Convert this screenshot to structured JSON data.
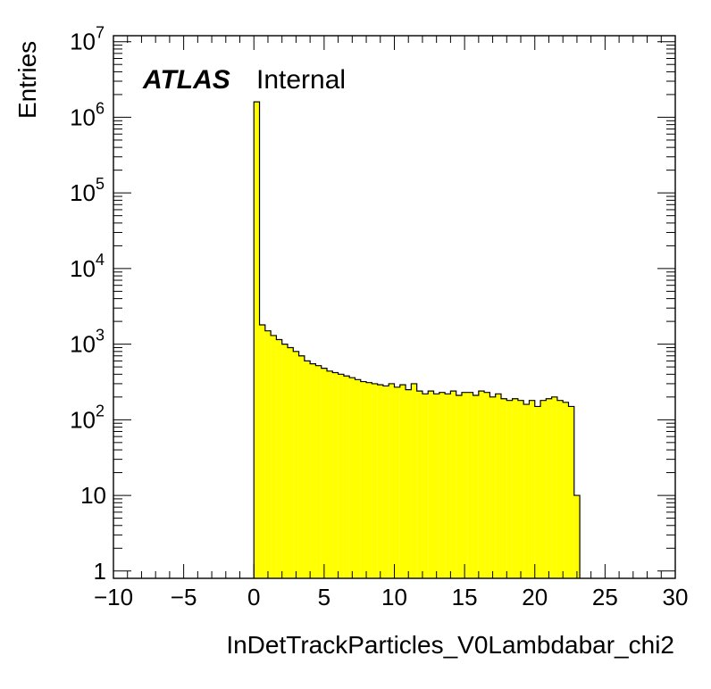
{
  "chart_data": {
    "type": "histogram",
    "xlabel": "InDetTrackParticles_V0Lambdabar_chi2",
    "ylabel": "Entries",
    "xlim": [
      -10,
      30
    ],
    "ylim_log": [
      0.8,
      12000000
    ],
    "log_y": true,
    "fill_color": "#ffff00",
    "line_color": "#000000",
    "label_main": "ATLAS",
    "label_sub": "Internal",
    "x_ticks": [
      {
        "value": -10,
        "label": "−10"
      },
      {
        "value": -5,
        "label": "−5"
      },
      {
        "value": 0,
        "label": "0"
      },
      {
        "value": 5,
        "label": "5"
      },
      {
        "value": 10,
        "label": "10"
      },
      {
        "value": 15,
        "label": "15"
      },
      {
        "value": 20,
        "label": "20"
      },
      {
        "value": 25,
        "label": "25"
      },
      {
        "value": 30,
        "label": "30"
      }
    ],
    "y_ticks": [
      {
        "value": 1,
        "base": "1",
        "exp": ""
      },
      {
        "value": 10,
        "base": "10",
        "exp": ""
      },
      {
        "value": 100,
        "base": "10",
        "exp": "2"
      },
      {
        "value": 1000,
        "base": "10",
        "exp": "3"
      },
      {
        "value": 10000,
        "base": "10",
        "exp": "4"
      },
      {
        "value": 100000,
        "base": "10",
        "exp": "5"
      },
      {
        "value": 1000000,
        "base": "10",
        "exp": "6"
      },
      {
        "value": 10000000,
        "base": "10",
        "exp": "7"
      }
    ],
    "bin_edges_start": 0,
    "bin_width": 0.4,
    "counts": [
      1600000,
      1800,
      1500,
      1300,
      1150,
      1000,
      900,
      800,
      700,
      600,
      550,
      520,
      480,
      440,
      420,
      400,
      380,
      360,
      340,
      320,
      310,
      300,
      290,
      280,
      300,
      270,
      290,
      250,
      300,
      240,
      220,
      240,
      220,
      230,
      220,
      240,
      210,
      230,
      230,
      210,
      240,
      230,
      200,
      220,
      190,
      180,
      190,
      180,
      160,
      180,
      150,
      180,
      190,
      200,
      180,
      170,
      150,
      10
    ]
  }
}
